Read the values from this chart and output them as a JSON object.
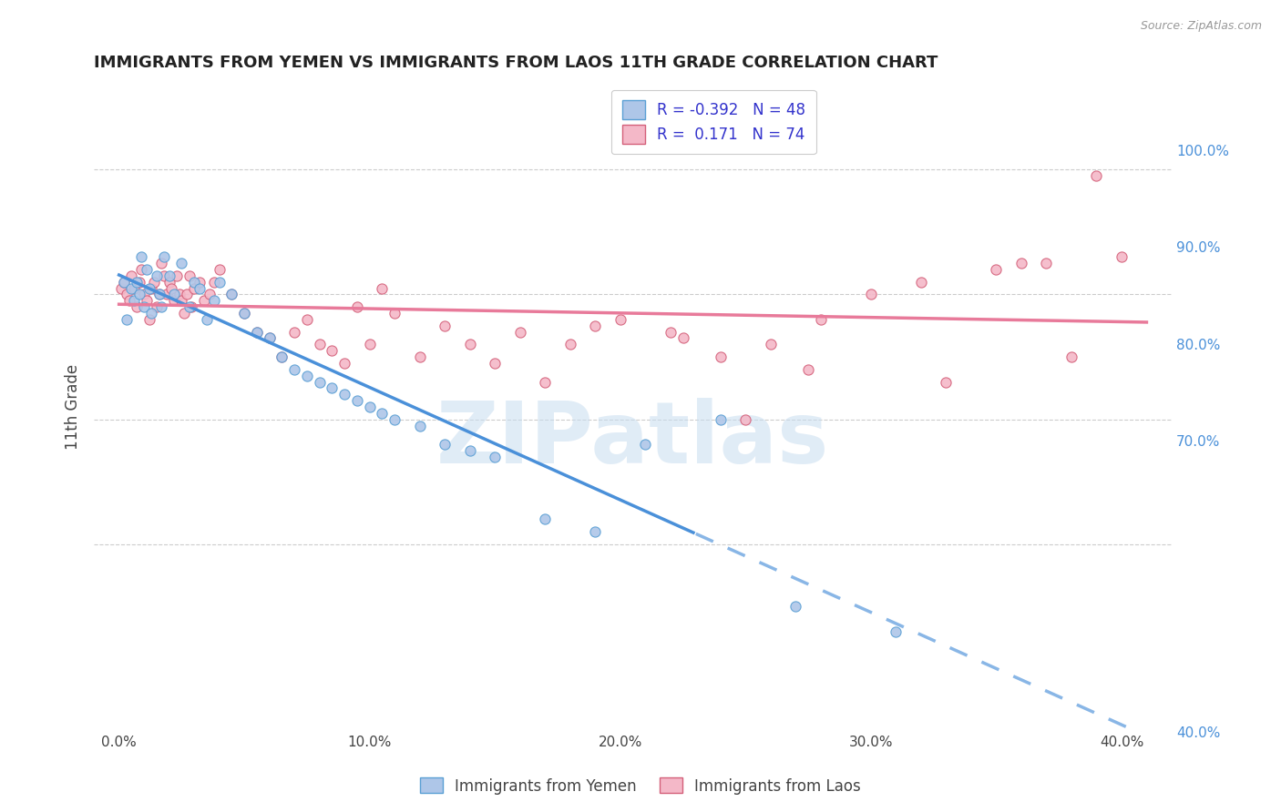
{
  "title": "IMMIGRANTS FROM YEMEN VS IMMIGRANTS FROM LAOS 11TH GRADE CORRELATION CHART",
  "source": "Source: ZipAtlas.com",
  "xlabel_ticks": [
    "0.0%",
    "10.0%",
    "20.0%",
    "30.0%",
    "40.0%"
  ],
  "xlabel_vals": [
    0.0,
    10.0,
    20.0,
    30.0,
    40.0
  ],
  "ylabel_left": "11th Grade",
  "ylabel_right_ticks": [
    "100.0%",
    "90.0%",
    "80.0%",
    "70.0%",
    "40.0%"
  ],
  "ylabel_right_vals": [
    100.0,
    90.0,
    80.0,
    70.0,
    40.0
  ],
  "ylim": [
    55.0,
    107.0
  ],
  "xlim": [
    -1.0,
    42.0
  ],
  "R_yemen": -0.392,
  "N_yemen": 48,
  "R_laos": 0.171,
  "N_laos": 74,
  "color_yemen_fill": "#aec6e8",
  "color_yemen_edge": "#5a9fd4",
  "color_laos_fill": "#f4b8c8",
  "color_laos_edge": "#d4607a",
  "color_line_yemen": "#4a90d9",
  "color_line_laos": "#e87a9a",
  "watermark": "ZIPatlas",
  "watermark_color": "#c8ddf0",
  "legend_text_color": "#3333cc",
  "yemen_scatter_x": [
    0.2,
    0.3,
    0.5,
    0.6,
    0.7,
    0.8,
    0.9,
    1.0,
    1.1,
    1.2,
    1.3,
    1.5,
    1.6,
    1.7,
    1.8,
    2.0,
    2.2,
    2.5,
    2.8,
    3.0,
    3.2,
    3.5,
    3.8,
    4.0,
    4.5,
    5.0,
    5.5,
    6.0,
    6.5,
    7.0,
    7.5,
    8.0,
    8.5,
    9.0,
    9.5,
    10.0,
    10.5,
    11.0,
    12.0,
    13.0,
    14.0,
    15.0,
    17.0,
    19.0,
    21.0,
    24.0,
    27.0,
    31.0
  ],
  "yemen_scatter_y": [
    91.0,
    88.0,
    90.5,
    89.5,
    91.0,
    90.0,
    93.0,
    89.0,
    92.0,
    90.5,
    88.5,
    91.5,
    90.0,
    89.0,
    93.0,
    91.5,
    90.0,
    92.5,
    89.0,
    91.0,
    90.5,
    88.0,
    89.5,
    91.0,
    90.0,
    88.5,
    87.0,
    86.5,
    85.0,
    84.0,
    83.5,
    83.0,
    82.5,
    82.0,
    81.5,
    81.0,
    80.5,
    80.0,
    79.5,
    78.0,
    77.5,
    77.0,
    72.0,
    71.0,
    78.0,
    80.0,
    65.0,
    63.0
  ],
  "laos_scatter_x": [
    0.1,
    0.2,
    0.3,
    0.4,
    0.5,
    0.6,
    0.7,
    0.8,
    0.9,
    1.0,
    1.1,
    1.2,
    1.3,
    1.4,
    1.5,
    1.6,
    1.7,
    1.8,
    1.9,
    2.0,
    2.1,
    2.2,
    2.3,
    2.4,
    2.5,
    2.6,
    2.7,
    2.8,
    2.9,
    3.0,
    3.2,
    3.4,
    3.6,
    3.8,
    4.0,
    4.5,
    5.0,
    5.5,
    6.0,
    6.5,
    7.0,
    7.5,
    8.0,
    8.5,
    9.0,
    9.5,
    10.0,
    11.0,
    12.0,
    13.0,
    14.0,
    15.0,
    16.0,
    17.0,
    18.0,
    19.0,
    20.0,
    22.0,
    24.0,
    25.0,
    26.0,
    28.0,
    30.0,
    32.0,
    35.0,
    37.0,
    38.0,
    40.0,
    10.5,
    22.5,
    27.5,
    33.0,
    36.0,
    39.0
  ],
  "laos_scatter_y": [
    90.5,
    91.0,
    90.0,
    89.5,
    91.5,
    90.5,
    89.0,
    91.0,
    92.0,
    90.0,
    89.5,
    88.0,
    90.5,
    91.0,
    89.0,
    90.0,
    92.5,
    91.5,
    90.0,
    91.0,
    90.5,
    89.5,
    91.5,
    90.0,
    89.5,
    88.5,
    90.0,
    91.5,
    89.0,
    90.5,
    91.0,
    89.5,
    90.0,
    91.0,
    92.0,
    90.0,
    88.5,
    87.0,
    86.5,
    85.0,
    87.0,
    88.0,
    86.0,
    85.5,
    84.5,
    89.0,
    86.0,
    88.5,
    85.0,
    87.5,
    86.0,
    84.5,
    87.0,
    83.0,
    86.0,
    87.5,
    88.0,
    87.0,
    85.0,
    80.0,
    86.0,
    88.0,
    90.0,
    91.0,
    92.0,
    92.5,
    85.0,
    93.0,
    90.5,
    86.5,
    84.0,
    83.0,
    92.5,
    99.5
  ],
  "line_solid_cutoff_yemen": 23.0,
  "line_solid_cutoff_laos": 100.0,
  "grid_color": "#cccccc",
  "grid_linestyle": "--",
  "grid_linewidth": 0.8
}
